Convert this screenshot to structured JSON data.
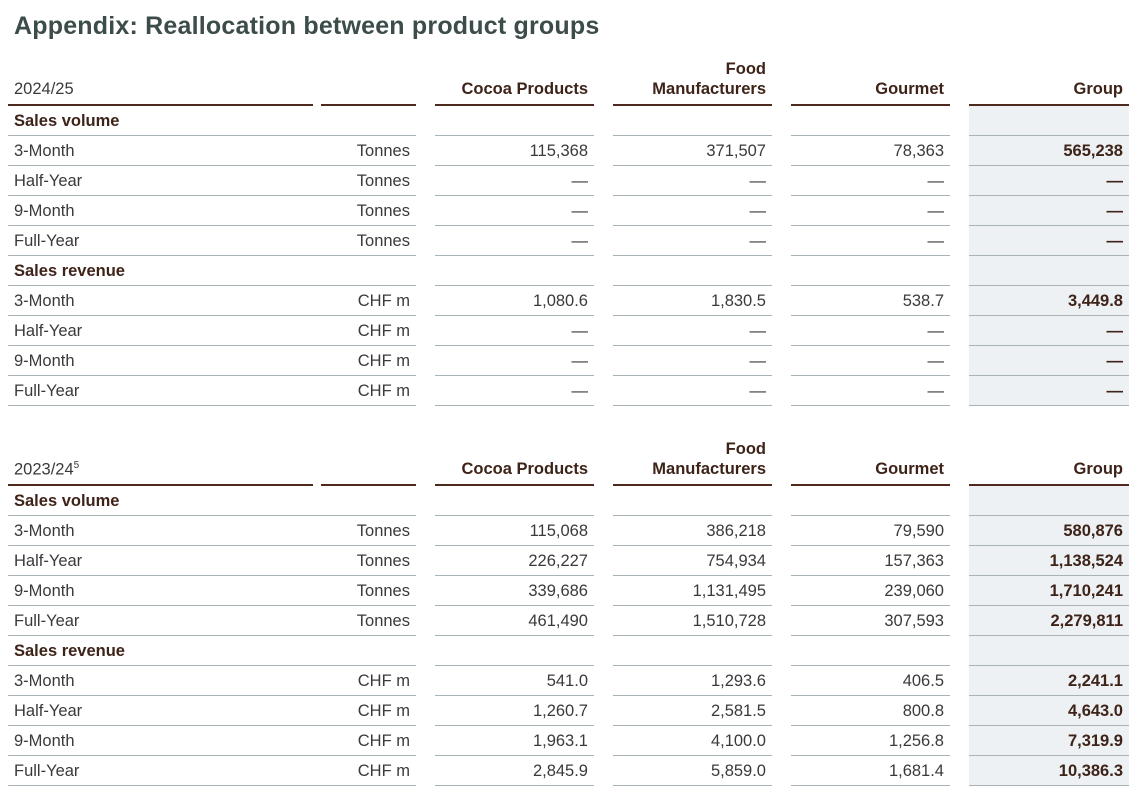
{
  "title": "Appendix: Reallocation between product groups",
  "columns": {
    "cocoa": "Cocoa Products",
    "food_line1": "Food",
    "food_line2": "Manufacturers",
    "gourmet": "Gourmet",
    "group": "Group"
  },
  "tables": [
    {
      "period": "2024/25",
      "footnote": "",
      "sections": [
        {
          "label": "Sales volume",
          "rows": [
            {
              "label": "3-Month",
              "unit": "Tonnes",
              "cocoa": "115,368",
              "food": "371,507",
              "gourmet": "78,363",
              "group": "565,238"
            },
            {
              "label": "Half-Year",
              "unit": "Tonnes",
              "cocoa": "—",
              "food": "—",
              "gourmet": "—",
              "group": "—"
            },
            {
              "label": "9-Month",
              "unit": "Tonnes",
              "cocoa": "—",
              "food": "—",
              "gourmet": "—",
              "group": "—"
            },
            {
              "label": "Full-Year",
              "unit": "Tonnes",
              "cocoa": "—",
              "food": "—",
              "gourmet": "—",
              "group": "—"
            }
          ]
        },
        {
          "label": "Sales revenue",
          "rows": [
            {
              "label": "3-Month",
              "unit": "CHF m",
              "cocoa": "1,080.6",
              "food": "1,830.5",
              "gourmet": "538.7",
              "group": "3,449.8"
            },
            {
              "label": "Half-Year",
              "unit": "CHF m",
              "cocoa": "—",
              "food": "—",
              "gourmet": "—",
              "group": "—"
            },
            {
              "label": "9-Month",
              "unit": "CHF m",
              "cocoa": "—",
              "food": "—",
              "gourmet": "—",
              "group": "—"
            },
            {
              "label": "Full-Year",
              "unit": "CHF m",
              "cocoa": "—",
              "food": "—",
              "gourmet": "—",
              "group": "—"
            }
          ]
        }
      ]
    },
    {
      "period": "2023/24",
      "footnote": "5",
      "sections": [
        {
          "label": "Sales volume",
          "rows": [
            {
              "label": "3-Month",
              "unit": "Tonnes",
              "cocoa": "115,068",
              "food": "386,218",
              "gourmet": "79,590",
              "group": "580,876"
            },
            {
              "label": "Half-Year",
              "unit": "Tonnes",
              "cocoa": "226,227",
              "food": "754,934",
              "gourmet": "157,363",
              "group": "1,138,524"
            },
            {
              "label": "9-Month",
              "unit": "Tonnes",
              "cocoa": "339,686",
              "food": "1,131,495",
              "gourmet": "239,060",
              "group": "1,710,241"
            },
            {
              "label": "Full-Year",
              "unit": "Tonnes",
              "cocoa": "461,490",
              "food": "1,510,728",
              "gourmet": "307,593",
              "group": "2,279,811"
            }
          ]
        },
        {
          "label": "Sales revenue",
          "rows": [
            {
              "label": "3-Month",
              "unit": "CHF m",
              "cocoa": "541.0",
              "food": "1,293.6",
              "gourmet": "406.5",
              "group": "2,241.1"
            },
            {
              "label": "Half-Year",
              "unit": "CHF m",
              "cocoa": "1,260.7",
              "food": "2,581.5",
              "gourmet": "800.8",
              "group": "4,643.0"
            },
            {
              "label": "9-Month",
              "unit": "CHF m",
              "cocoa": "1,963.1",
              "food": "4,100.0",
              "gourmet": "1,256.8",
              "group": "7,319.9"
            },
            {
              "label": "Full-Year",
              "unit": "CHF m",
              "cocoa": "2,845.9",
              "food": "5,859.0",
              "gourmet": "1,681.4",
              "group": "10,386.3"
            }
          ]
        }
      ]
    }
  ]
}
